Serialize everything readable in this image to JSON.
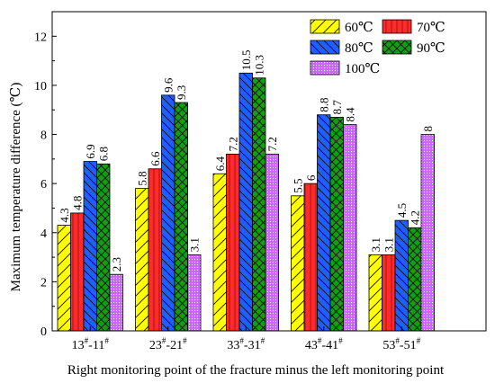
{
  "chart_data": {
    "type": "bar",
    "title": "",
    "xlabel": "Right monitoring point of the fracture minus the left monitoring point",
    "ylabel": "Maximum temperature difference (℃)",
    "ylim": [
      0,
      13
    ],
    "yticks": [
      0,
      2,
      4,
      6,
      8,
      10,
      12
    ],
    "categories": [
      {
        "left": "13",
        "right": "11"
      },
      {
        "left": "23",
        "right": "21"
      },
      {
        "left": "33",
        "right": "31"
      },
      {
        "left": "43",
        "right": "41"
      },
      {
        "left": "53",
        "right": "51"
      }
    ],
    "category_mark": "#",
    "category_sep": "-",
    "legend_position": "top-right",
    "grid": false,
    "series": [
      {
        "name": "60℃",
        "color": "#ffff00",
        "pattern": "diagonal-forward",
        "values": [
          4.3,
          5.8,
          6.4,
          5.5,
          3.1
        ],
        "labels": [
          "4.3",
          "5.8",
          "6.4",
          "5.5",
          "3.1"
        ]
      },
      {
        "name": "70℃",
        "color": "#ff2a2a",
        "pattern": "vertical-lines",
        "values": [
          4.8,
          6.6,
          7.2,
          6.0,
          3.1
        ],
        "labels": [
          "4.8",
          "6.6",
          "7.2",
          "6",
          "3.1"
        ]
      },
      {
        "name": "80℃",
        "color": "#1f5fff",
        "pattern": "diagonal-back",
        "values": [
          6.9,
          9.6,
          10.5,
          8.8,
          4.5
        ],
        "labels": [
          "6.9",
          "9.6",
          "10.5",
          "8.8",
          "4.5"
        ]
      },
      {
        "name": "90℃",
        "color": "#12a012",
        "pattern": "crosshatch",
        "values": [
          6.8,
          9.3,
          10.3,
          8.7,
          4.2
        ],
        "labels": [
          "6.8",
          "9.3",
          "10.3",
          "8.7",
          "4.2"
        ]
      },
      {
        "name": "100℃",
        "color": "#cc66ff",
        "pattern": "dots",
        "values": [
          2.3,
          3.1,
          7.2,
          8.4,
          8.0
        ],
        "labels": [
          "2.3",
          "3.1",
          "7.2",
          "8.4",
          "8"
        ]
      }
    ]
  }
}
